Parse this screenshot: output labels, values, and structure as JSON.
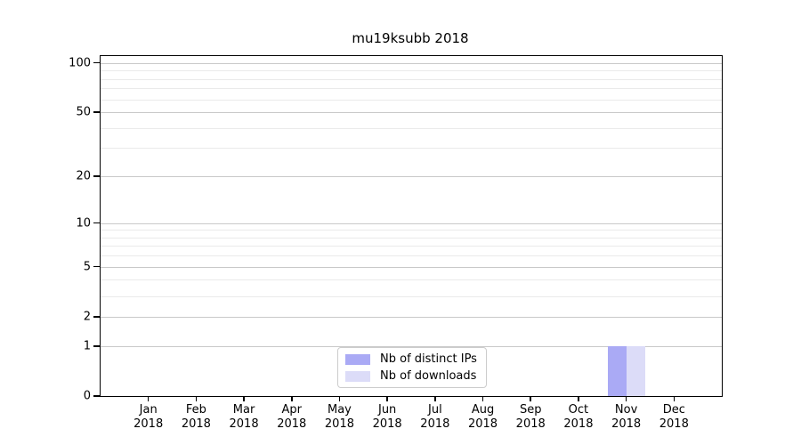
{
  "chart_data": {
    "type": "bar",
    "title": "mu19ksubb 2018",
    "categories": [
      "Jan 2018",
      "Feb 2018",
      "Mar 2018",
      "Apr 2018",
      "May 2018",
      "Jun 2018",
      "Jul 2018",
      "Aug 2018",
      "Sep 2018",
      "Oct 2018",
      "Nov 2018",
      "Dec 2018"
    ],
    "series": [
      {
        "name": "Nb of distinct IPs",
        "color": "#aaaaf5",
        "values": [
          0,
          0,
          0,
          0,
          0,
          0,
          0,
          0,
          0,
          0,
          1,
          0
        ]
      },
      {
        "name": "Nb of downloads",
        "color": "#dcdcf8",
        "values": [
          0,
          0,
          0,
          0,
          0,
          0,
          0,
          0,
          0,
          0,
          1,
          0
        ]
      }
    ],
    "xlabel": "",
    "ylabel": "",
    "y_scale": "log1p",
    "ylim": [
      0,
      110
    ],
    "y_ticks": [
      0,
      1,
      2,
      5,
      10,
      20,
      50,
      100
    ],
    "y_minor_gridlines": [
      3,
      4,
      6,
      7,
      8,
      9,
      30,
      40,
      60,
      70,
      80,
      90
    ],
    "grid": true,
    "legend_position": "lower center"
  }
}
